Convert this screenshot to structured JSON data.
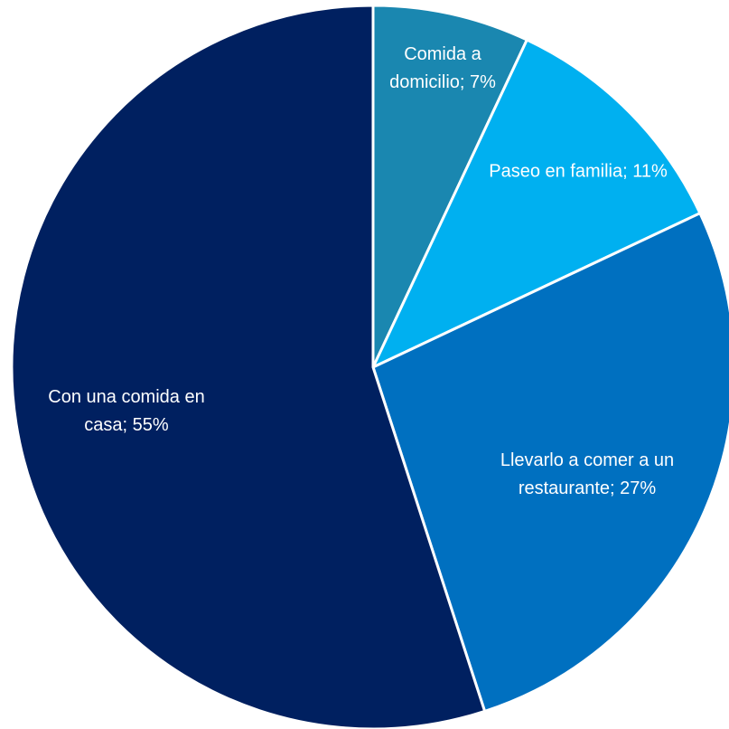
{
  "chart_data": {
    "type": "pie",
    "values": [
      7,
      11,
      27,
      55
    ],
    "value_labels": [
      "Comida a domicilio; 7%",
      "Paseo en familia; 11%",
      "Llevarlo a comer a un restaurante; 27%",
      "Con una comida en casa; 55%"
    ],
    "colors": [
      "#1a87b0",
      "#00b0f0",
      "#0070c0",
      "#002060"
    ],
    "start_angle": 0,
    "direction": "clockwise"
  }
}
